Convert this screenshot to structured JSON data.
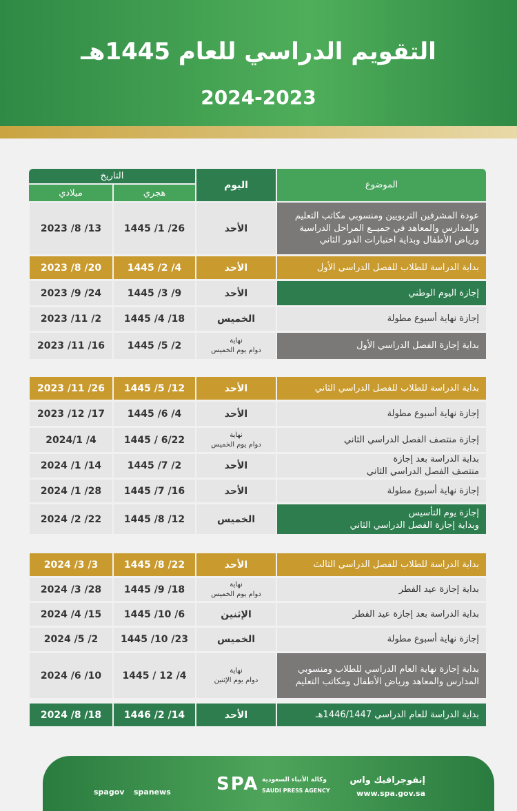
{
  "header": {
    "title": "التقويم الدراسي للعام 1445هـ",
    "years": "2024-2023"
  },
  "table": {
    "columns": {
      "topic": "الموضوع",
      "day": "اليوم",
      "date": "التاريخ",
      "hijri": "هجري",
      "gregorian": "ميلادي"
    },
    "sections": [
      [
        {
          "topic": "عودة المشرفين التربويين ومنسوبي مكاتب التعليم والمدارس والمعاهد في جميــع المراحل الدراسية ورياض الأطفال وبداية اختبارات الدور الثاني",
          "day": "الأحد",
          "hijri": "1445 /1 /26",
          "gregorian": "2023 /8 /13",
          "color": "#7b7878",
          "row_color": "#e6e6e6"
        },
        {
          "topic": "بداية الدراسة للطلاب للفصل الدراسي الأول",
          "day": "الأحد",
          "hijri": "1445 /2 /4",
          "gregorian": "2023 /8 /20",
          "color": "#c99a2e",
          "row_color": "#c99a2e"
        },
        {
          "topic": "إجازة اليوم الوطني",
          "day": "الأحد",
          "hijri": "1445 /3 /9",
          "gregorian": "2023 /9 /24",
          "color": "#2e7d4f",
          "row_color": "#e6e6e6"
        },
        {
          "topic": "إجازة نهاية أسبوع مطولة",
          "day": "الخميس",
          "hijri": "1445 /4 /18",
          "gregorian": "2023 /11 /2",
          "color": "#e6e6e6",
          "row_color": "#e6e6e6"
        },
        {
          "topic": "بداية إجازة الفصل الدراسي الأول",
          "day": "نهاية\nدوام يوم الخميس",
          "hijri": "1445 /5 /2",
          "gregorian": "2023 /11 /16",
          "color": "#7b7878",
          "row_color": "#e6e6e6"
        }
      ],
      [
        {
          "topic": "بداية الدراسة للطلاب للفصل الدراسي الثاني",
          "day": "الأحد",
          "hijri": "1445 /5 /12",
          "gregorian": "2023 /11 /26",
          "color": "#c99a2e",
          "row_color": "#c99a2e"
        },
        {
          "topic": "إجازة نهاية أسبوع مطولة",
          "day": "الأحد",
          "hijri": "1445 /6 /4",
          "gregorian": "2023 /12 /17",
          "color": "#e6e6e6",
          "row_color": "#e6e6e6"
        },
        {
          "topic": "إجازة منتصف الفصل الدراسي الثاني",
          "day": "نهاية\nدوام يوم الخميس",
          "hijri": "1445 / 6/22",
          "gregorian": "2024/1 /4",
          "color": "#e6e6e6",
          "row_color": "#e6e6e6"
        },
        {
          "topic": "بداية الدراسة بعد إجازة\nمنتصف الفصل الدراسي الثاني",
          "day": "الأحد",
          "hijri": "1445 /7 /2",
          "gregorian": "2024 /1 /14",
          "color": "#e6e6e6",
          "row_color": "#e6e6e6"
        },
        {
          "topic": "إجازة نهاية أسبوع مطولة",
          "day": "الأحد",
          "hijri": "1445 /7 /16",
          "gregorian": "2024 /1 /28",
          "color": "#e6e6e6",
          "row_color": "#e6e6e6"
        },
        {
          "topic": "إجازة يوم التأسيس\nوبداية إجازة الفصل الدراسي الثاني",
          "day": "الخميس",
          "hijri": "1445 /8 /12",
          "gregorian": "2024 /2 /22",
          "color": "#2e7d4f",
          "row_color": "#e6e6e6"
        }
      ],
      [
        {
          "topic": "بداية الدراسة للطلاب للفصل الدراسي الثالث",
          "day": "الأحد",
          "hijri": "1445 /8 /22",
          "gregorian": "2024 /3 /3",
          "color": "#c99a2e",
          "row_color": "#c99a2e"
        },
        {
          "topic": "بداية إجازة عيد الفطر",
          "day": "نهاية\nدوام يوم الخميس",
          "hijri": "1445 /9 /18",
          "gregorian": "2024 /3 /28",
          "color": "#e6e6e6",
          "row_color": "#e6e6e6"
        },
        {
          "topic": "بداية الدراسة بعد إجازة عيد الفطر",
          "day": "الإثنين",
          "hijri": "1445 /10 /6",
          "gregorian": "2024 /4 /15",
          "color": "#e6e6e6",
          "row_color": "#e6e6e6"
        },
        {
          "topic": "إجازة نهاية أسبوع مطولة",
          "day": "الخميس",
          "hijri": "1445 /10 /23",
          "gregorian": "2024 /5 /2",
          "color": "#e6e6e6",
          "row_color": "#e6e6e6"
        },
        {
          "topic": "بداية إجازة نهاية العام الدراسي للطلاب ومنسوبي المدارس والمعاهد ورياض الأطفال ومكاتب التعليم",
          "day": "نهاية\nدوام يوم الإثنين",
          "hijri": "1445 / 12 /4",
          "gregorian": "2024 /6 /10",
          "color": "#7b7878",
          "row_color": "#e6e6e6"
        }
      ],
      [
        {
          "topic": "بداية الدراسة للعام الدراسي 1446/1447هـ",
          "day": "الأحد",
          "hijri": "1446 /2 /14",
          "gregorian": "2024 /8 /18",
          "color": "#2e7d4f",
          "row_color": "#2e7d4f"
        }
      ]
    ]
  },
  "footer": {
    "brand": "إنفوجرافيك واس",
    "url": "www.spa.gov.sa",
    "agency_ar": "وكالة الأنباء السعودية",
    "agency_en": "SAUDI PRESS AGENCY",
    "logo": "SPA",
    "handle1": "spagov",
    "handle2": "spanews"
  }
}
